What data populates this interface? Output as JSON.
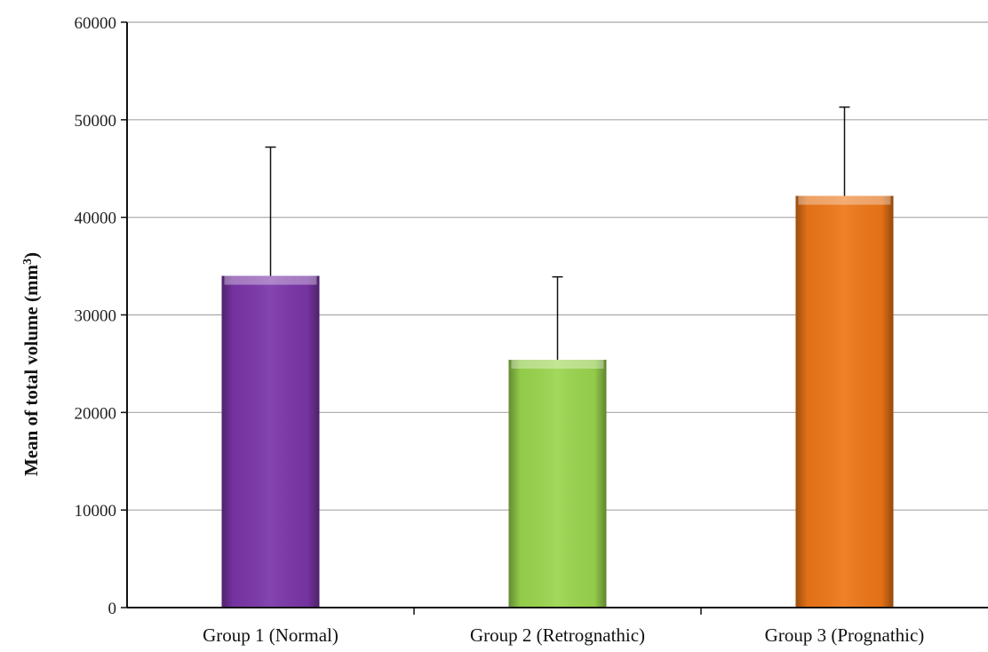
{
  "chart_data": {
    "type": "bar",
    "title": "",
    "xlabel": "",
    "ylabel": "Mean of total volume (mm³)",
    "ylabel_parts": {
      "main": "Mean of total  volume (mm",
      "sup": "3",
      "tail": ")"
    },
    "ylim": [
      0,
      60000
    ],
    "yticks": [
      0,
      10000,
      20000,
      30000,
      40000,
      50000,
      60000
    ],
    "ytick_labels": [
      "0",
      "10000",
      "20000",
      "30000",
      "40000",
      "50000",
      "60000"
    ],
    "grid": true,
    "categories": [
      "Group 1 (Normal)",
      "Group 2 (Retrognathic)",
      "Group 3 (Prognathic)"
    ],
    "values": [
      34000,
      25400,
      42200
    ],
    "error_upper": [
      47200,
      33900,
      51300
    ],
    "colors": [
      "#7a35a8",
      "#9ad54e",
      "#ee7617"
    ]
  }
}
